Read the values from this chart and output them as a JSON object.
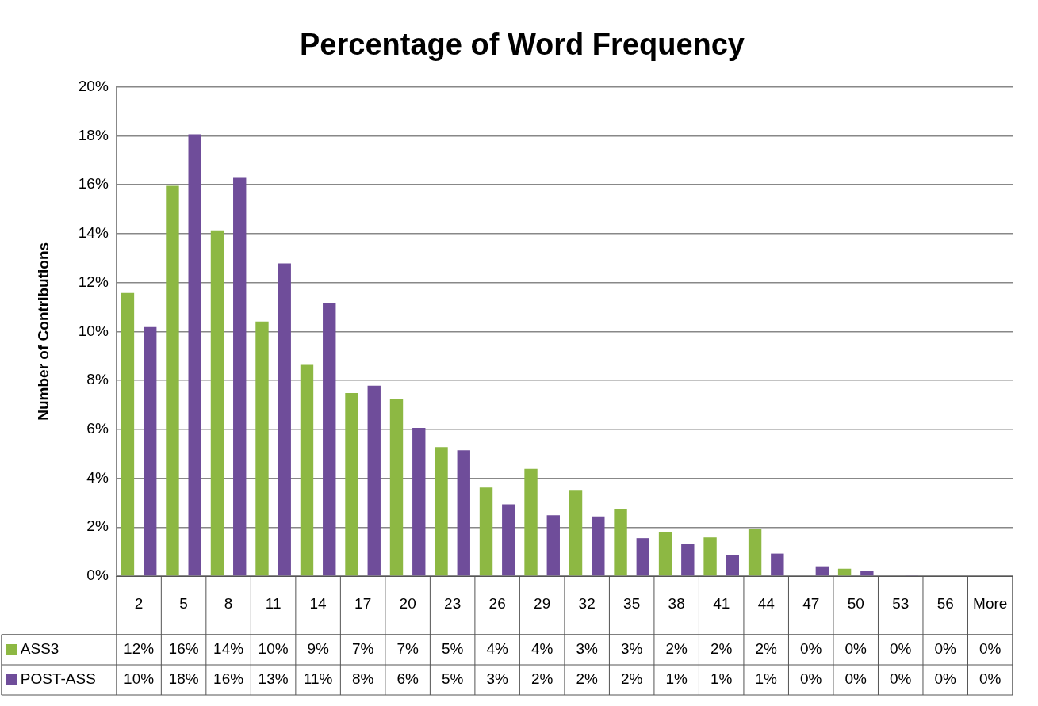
{
  "chart_data": {
    "type": "bar",
    "title": "Percentage of Word Frequency",
    "ylabel": "Number of Contributions",
    "categories": [
      "2",
      "5",
      "8",
      "11",
      "14",
      "17",
      "20",
      "23",
      "26",
      "29",
      "32",
      "35",
      "38",
      "41",
      "44",
      "47",
      "50",
      "53",
      "56",
      "More"
    ],
    "series": [
      {
        "name": "ASS3",
        "color": "#8db843",
        "values": [
          11.57,
          15.95,
          14.13,
          10.41,
          8.63,
          7.48,
          7.22,
          5.27,
          3.62,
          4.38,
          3.49,
          2.73,
          1.81,
          1.58,
          1.94,
          0,
          0.3,
          0,
          0,
          0
        ],
        "value_labels": [
          "12%",
          "16%",
          "14%",
          "10%",
          "9%",
          "7%",
          "7%",
          "5%",
          "4%",
          "4%",
          "3%",
          "3%",
          "2%",
          "2%",
          "2%",
          "0%",
          "0%",
          "0%",
          "0%",
          "0%"
        ]
      },
      {
        "name": "POST-ASS",
        "color": "#6f4d9a",
        "values": [
          10.18,
          18.06,
          16.28,
          12.78,
          11.17,
          7.78,
          6.06,
          5.14,
          2.93,
          2.49,
          2.44,
          1.55,
          1.32,
          0.86,
          0.92,
          0.4,
          0.2,
          0.03,
          0,
          0
        ],
        "value_labels": [
          "10%",
          "18%",
          "16%",
          "13%",
          "11%",
          "8%",
          "6%",
          "5%",
          "3%",
          "2%",
          "2%",
          "2%",
          "1%",
          "1%",
          "1%",
          "0%",
          "0%",
          "0%",
          "0%",
          "0%"
        ]
      }
    ],
    "ylim": [
      0,
      20
    ],
    "yticks": [
      {
        "value": 0,
        "label": "0%"
      },
      {
        "value": 2,
        "label": "2%"
      },
      {
        "value": 4,
        "label": "4%"
      },
      {
        "value": 6,
        "label": "6%"
      },
      {
        "value": 8,
        "label": "8%"
      },
      {
        "value": 10,
        "label": "10%"
      },
      {
        "value": 12,
        "label": "12%"
      },
      {
        "value": 14,
        "label": "14%"
      },
      {
        "value": 16,
        "label": "16%"
      },
      {
        "value": 18,
        "label": "18%"
      },
      {
        "value": 20,
        "label": "20%"
      }
    ],
    "grid": "y",
    "legend": "bottom"
  }
}
